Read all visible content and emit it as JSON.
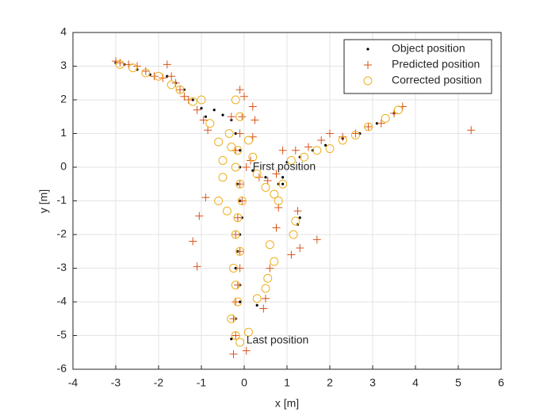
{
  "chart_data": {
    "type": "scatter",
    "x_label": "x [m]",
    "y_label": "y [m]",
    "xlim": [
      -4,
      6
    ],
    "ylim": [
      -6,
      4
    ],
    "xticks": [
      -4,
      -3,
      -2,
      -1,
      0,
      1,
      2,
      3,
      4,
      5,
      6
    ],
    "yticks": [
      -6,
      -5,
      -4,
      -3,
      -2,
      -1,
      0,
      1,
      2,
      3,
      4
    ],
    "grid": true,
    "legend_position": "northeast",
    "annotations": [
      {
        "text": "First position",
        "x": 0.2,
        "y": 0
      },
      {
        "text": "Last position",
        "x": 0.05,
        "y": -5.15
      }
    ],
    "series": [
      {
        "name": "Object position",
        "marker": "dot",
        "color": "#000000",
        "x": [
          -3,
          -2.8,
          -2.5,
          -2.2,
          -1.8,
          -1.6,
          -1.4,
          -1.2,
          -1,
          -0.9,
          -0.7,
          -0.5,
          -0.3,
          -0.2,
          -0.1,
          -0.1,
          -0.15,
          -0.1,
          -0.05,
          -0.1,
          -0.15,
          -0.2,
          -0.1,
          -0.1,
          -0.2,
          -0.3,
          0.2,
          0.5,
          0.8,
          1,
          1.3,
          1.6,
          1.9,
          2.3,
          2.7,
          3.1,
          3.5,
          0.9,
          0.9,
          1.3,
          1.25,
          0.3
        ],
        "values": [
          3.1,
          3.05,
          2.9,
          2.75,
          2.7,
          2.5,
          2.3,
          2.0,
          1.75,
          1.5,
          1.7,
          1.55,
          1.4,
          1.0,
          0.5,
          0,
          -0.5,
          -1,
          -1.5,
          -2,
          -2.5,
          -3,
          -3.5,
          -4,
          -4.5,
          -5.1,
          -0.1,
          -0.3,
          -0.5,
          0.15,
          0.3,
          0.5,
          0.65,
          0.85,
          1.0,
          1.3,
          1.6,
          -0.3,
          -0.5,
          -1.5,
          -1.7,
          -4.1
        ]
      },
      {
        "name": "Predicted position",
        "marker": "plus",
        "color": "#D95319",
        "x": [
          -3,
          -2.9,
          -2.7,
          -2.5,
          -2.3,
          -2.1,
          -1.9,
          -1.8,
          -1.7,
          -1.6,
          -1.5,
          -1.4,
          -1.3,
          -1.1,
          -0.95,
          -0.85,
          -0.3,
          -0.1,
          0,
          -0.05,
          -0.1,
          -0.2,
          0.05,
          -0.1,
          -0.05,
          -0.15,
          -0.2,
          -0.1,
          -0.1,
          -0.15,
          -0.2,
          -0.25,
          -0.2,
          0.05,
          0.2,
          0.25,
          0.2,
          0.15,
          0.35,
          0.55,
          0.75,
          0.9,
          1.2,
          1.5,
          1.8,
          2.0,
          2.3,
          2.6,
          2.9,
          3.2,
          3.5,
          3.7,
          5.3,
          -1.2,
          -1.1,
          -1.05,
          -0.9,
          1.7,
          0.8,
          0.75,
          1.3,
          1.25,
          1.1,
          0.6,
          0.5,
          0.45,
          -0.25
        ],
        "values": [
          3.15,
          3.1,
          3.05,
          3.0,
          2.85,
          2.7,
          2.65,
          3.05,
          2.7,
          2.5,
          2.3,
          2.1,
          2.0,
          1.7,
          1.4,
          1.1,
          1.5,
          2.3,
          2.1,
          1.5,
          1.0,
          0.5,
          0,
          -0.5,
          -1,
          -1.5,
          -2,
          -2.5,
          -3,
          -3.5,
          -4,
          -4.5,
          -5.0,
          -5.45,
          1.8,
          1.4,
          0.9,
          0.2,
          -0.3,
          -0.4,
          -0.2,
          0.5,
          0.5,
          0.6,
          0.8,
          1.0,
          0.9,
          1.0,
          1.2,
          1.3,
          1.6,
          1.8,
          1.1,
          -2.2,
          -2.95,
          -1.45,
          -0.9,
          -2.15,
          -1.2,
          -1.8,
          -2.4,
          -1.3,
          -2.6,
          -3.0,
          -3.9,
          -4.2,
          -5.55
        ]
      },
      {
        "name": "Corrected position",
        "marker": "circle",
        "color": "#EDB120",
        "x": [
          -2.9,
          -2.6,
          -2.3,
          -2.0,
          -1.7,
          -1.5,
          -1.2,
          -1.0,
          -0.8,
          -0.6,
          -0.5,
          -0.35,
          -0.3,
          -0.2,
          -0.1,
          -0.15,
          -0.2,
          -0.1,
          -0.05,
          -0.15,
          -0.2,
          -0.1,
          -0.25,
          -0.2,
          -0.15,
          -0.3,
          -0.2,
          -0.1,
          0.1,
          0.2,
          0.3,
          0.5,
          0.7,
          0.9,
          1.1,
          1.4,
          1.7,
          2.0,
          2.3,
          2.6,
          2.9,
          3.3,
          3.6,
          0.8,
          0.6,
          0.7,
          0.55,
          1.2,
          1.15,
          0.5,
          0.3,
          0.1,
          -0.5,
          -0.6,
          -0.4
        ],
        "values": [
          3.05,
          2.95,
          2.8,
          2.7,
          2.45,
          2.3,
          1.95,
          2.0,
          1.3,
          0.75,
          0.2,
          1.0,
          0.6,
          2.0,
          1.5,
          0.5,
          0,
          -0.5,
          -1,
          -1.5,
          -2,
          -2.5,
          -3,
          -3.5,
          -4,
          -4.5,
          -5.0,
          -5.2,
          0.8,
          0.3,
          -0.2,
          -0.6,
          -0.8,
          -0.5,
          0.2,
          0.3,
          0.5,
          0.55,
          0.8,
          0.95,
          1.2,
          1.45,
          1.7,
          -1.0,
          -2.3,
          -2.8,
          -3.3,
          -1.6,
          -2.0,
          -3.6,
          -3.9,
          -4.9,
          -0.3,
          -1.0,
          -1.3
        ]
      }
    ]
  }
}
